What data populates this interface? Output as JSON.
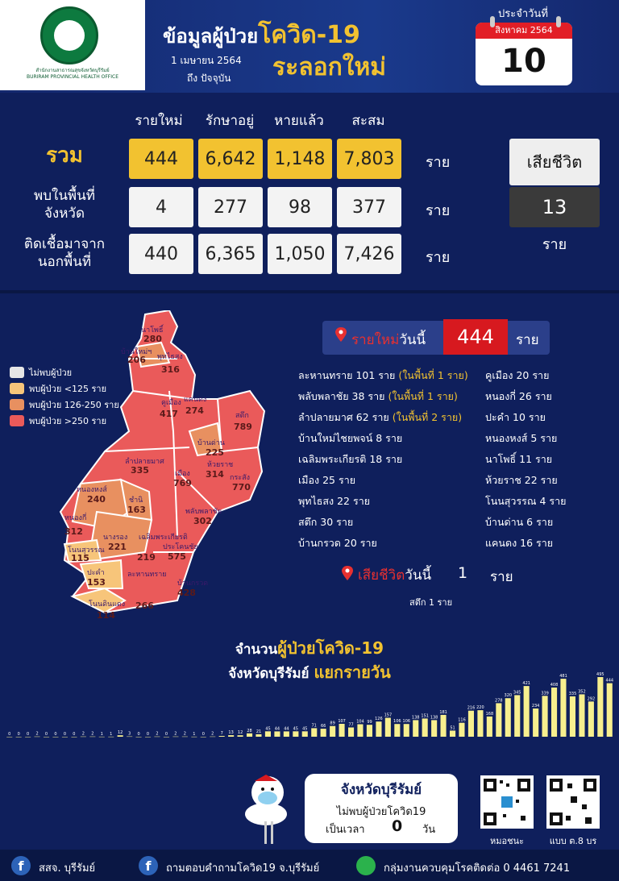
{
  "header": {
    "logo_ring_text": "กระทรวงสาธารณสุข",
    "logo_caption_th": "สำนักงานสาธารณสุขจังหวัดบุรีรัมย์",
    "logo_caption_en": "BURIRAM PROVINCIAL HEALTH OFFICE",
    "title_prefix": "ข้อมูลผู้ป่วย",
    "title_highlight": "โควิด-19",
    "title_line2": "ระลอกใหม่",
    "date_from": "1 เมษายน 2564",
    "date_to": "ถึง ปัจจุบัน",
    "calendar_label": "ประจำวันที่",
    "calendar_month": "สิงหาคม 2564",
    "calendar_day": "10"
  },
  "summary": {
    "columns": [
      "รายใหม่",
      "รักษาอยู่",
      "หายแล้ว",
      "สะสม"
    ],
    "rows": [
      {
        "label": "รวม",
        "values": [
          "444",
          "6,642",
          "1,148",
          "7,803"
        ],
        "unit": "ราย"
      },
      {
        "label_l1": "พบในพื้นที่",
        "label_l2": "จังหวัด",
        "values": [
          "4",
          "277",
          "98",
          "377"
        ],
        "unit": "ราย"
      },
      {
        "label_l1": "ติดเชื้อมาจาก",
        "label_l2": "นอกพื้นที่",
        "values": [
          "440",
          "6,365",
          "1,050",
          "7,426"
        ],
        "unit": "ราย"
      }
    ],
    "death_label": "เสียชีวิต",
    "death_value": "13",
    "death_unit": "ราย"
  },
  "legend": [
    {
      "label": "ไม่พบผู้ป่วย",
      "color": "#e6e6e6"
    },
    {
      "label": "พบผู้ป่วย <125 ราย",
      "color": "#f7c57a"
    },
    {
      "label": "พบผู้ป่วย 126-250 ราย",
      "color": "#e89060"
    },
    {
      "label": "พบผู้ป่วย >250 ราย",
      "color": "#ea5a5a"
    }
  ],
  "map_districts": [
    {
      "name": "นาโพธิ์",
      "value": "280"
    },
    {
      "name": "บ้านใหม่ฯ",
      "value": "206"
    },
    {
      "name": "พุทไธสง",
      "value": "316"
    },
    {
      "name": "คูเมือง",
      "value": "417"
    },
    {
      "name": "แคนดง",
      "value": "274"
    },
    {
      "name": "สตึก",
      "value": "789"
    },
    {
      "name": "บ้านด่าน",
      "value": "225"
    },
    {
      "name": "ลำปลายมาศ",
      "value": "335"
    },
    {
      "name": "ห้วยราช",
      "value": "314"
    },
    {
      "name": "เมือง",
      "value": "769"
    },
    {
      "name": "กระสัง",
      "value": "770"
    },
    {
      "name": "หนองหงส์",
      "value": "240"
    },
    {
      "name": "ชำนิ",
      "value": "163"
    },
    {
      "name": "พลับพลาชัย",
      "value": "302"
    },
    {
      "name": "หนองกี่",
      "value": "312"
    },
    {
      "name": "นางรอง",
      "value": "221"
    },
    {
      "name": "เฉลิมพระเกียรติ",
      "value": "219"
    },
    {
      "name": "ประโคนชัย",
      "value": "575"
    },
    {
      "name": "โนนสุวรรณ",
      "value": "115"
    },
    {
      "name": "ปะคำ",
      "value": "153"
    },
    {
      "name": "บ้านกรวด",
      "value": "428"
    },
    {
      "name": "ละหานทราย",
      "value": "266"
    },
    {
      "name": "โนนดินแดง",
      "value": "114"
    }
  ],
  "today": {
    "new_label_red": "รายใหม่",
    "new_label": "วันนี้",
    "new_value": "444",
    "unit": "ราย",
    "left_list": [
      {
        "text": "ละหานทราย 101 ราย",
        "note": "(ในพื้นที่ 1 ราย)"
      },
      {
        "text": "พลับพลาชัย 38 ราย",
        "note": "(ในพื้นที่ 1 ราย)"
      },
      {
        "text": "ลำปลายมาศ 62 ราย",
        "note": "(ในพื้นที่ 2 ราย)"
      },
      {
        "text": "บ้านใหม่ไชยพจน์ 8 ราย",
        "note": ""
      },
      {
        "text": "เฉลิมพระเกียรติ 18 ราย",
        "note": ""
      },
      {
        "text": "เมือง 25 ราย",
        "note": ""
      },
      {
        "text": "พุทไธสง 22 ราย",
        "note": ""
      },
      {
        "text": "สตึก 30 ราย",
        "note": ""
      },
      {
        "text": "บ้านกรวด 20 ราย",
        "note": ""
      }
    ],
    "right_list": [
      "คูเมือง 20 ราย",
      "หนองกี่ 26 ราย",
      "ปะคำ 10 ราย",
      "หนองหงส์ 5 ราย",
      "นาโพธิ์ 11 ราย",
      "ห้วยราช 22 ราย",
      "โนนสุวรรณ 4 ราย",
      "บ้านด่าน 6 ราย",
      "แคนดง 16 ราย"
    ],
    "death_label_red": "เสียชีวิต",
    "death_label": "วันนี้",
    "death_value": "1",
    "death_detail": "สตึก 1 ราย"
  },
  "chart_title": {
    "l1_a": "จำนวน",
    "l1_hi": "ผู้ป่วยโควิด-19",
    "l2_a": "จังหวัดบุรีรัมย์ ",
    "l2_hi": "แยกรายวัน"
  },
  "chart_data": {
    "type": "bar",
    "values": [
      0,
      0,
      0,
      2,
      0,
      0,
      0,
      0,
      2,
      2,
      1,
      1,
      12,
      3,
      0,
      0,
      2,
      0,
      2,
      2,
      1,
      0,
      2,
      7,
      13,
      12,
      28,
      21,
      45,
      44,
      44,
      45,
      45,
      71,
      66,
      89,
      107,
      77,
      104,
      99,
      126,
      157,
      106,
      106,
      138,
      151,
      138,
      181,
      51,
      116,
      216,
      220,
      168,
      278,
      320,
      345,
      421,
      234,
      339,
      408,
      481,
      335,
      352,
      292,
      495,
      444
    ],
    "labels": [
      "0",
      "0",
      "0",
      "2",
      "0",
      "0",
      "0",
      "0",
      "2",
      "2",
      "1",
      "1",
      "12",
      "3",
      "0",
      "0",
      "2",
      "0",
      "2",
      "2",
      "1",
      "0",
      "2",
      "7",
      "13",
      "12",
      "28",
      "21",
      "45",
      "44",
      "44",
      "45",
      "45",
      "71",
      "66",
      "89",
      "107",
      "77",
      "104",
      "99",
      "126",
      "157",
      "106",
      "106",
      "138",
      "151",
      "138",
      "181",
      "51",
      "116",
      "216",
      "220",
      "168",
      "278",
      "320",
      "345",
      "421",
      "234",
      "339",
      "408",
      "481",
      "335",
      "352",
      "292",
      "495",
      "444"
    ],
    "bar_color": "#f7ef8e"
  },
  "bottom": {
    "free_title": "จังหวัดบุรีรัมย์",
    "free_line": "ไม่พบผู้ป่วยโควิด19",
    "free_prefix": "เป็นเวลา",
    "free_days": "0",
    "free_unit": "วัน",
    "qr1_caption": "หมอชนะ",
    "qr2_caption": "แบบ ต.8 บร"
  },
  "footer": {
    "item1": "สสจ. บุรีรัมย์",
    "item2": "ถามตอบคำถามโควิด19 จ.บุรีรัมย์",
    "item3": "กลุ่มงานควบคุมโรคติดต่อ 0 4461 7241"
  }
}
